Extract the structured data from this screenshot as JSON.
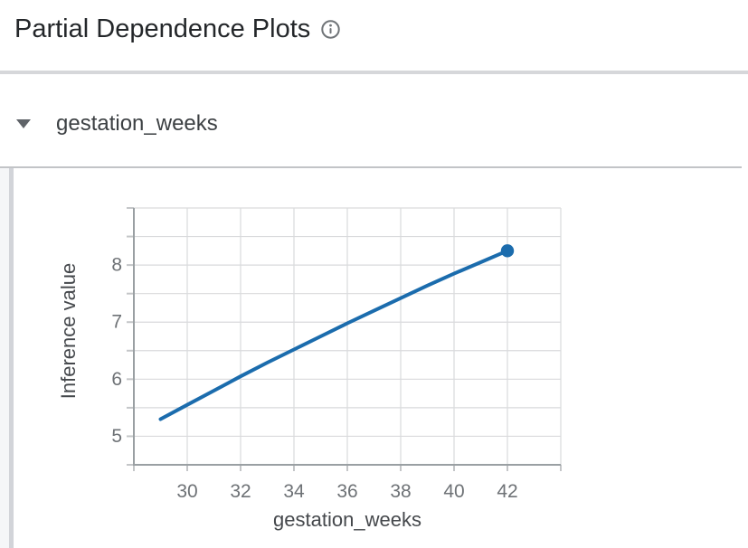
{
  "header": {
    "title": "Partial Dependence Plots"
  },
  "section": {
    "label": "gestation_weeks",
    "state": "expanded"
  },
  "colors": {
    "line_blue": "#1b6cad",
    "grid_line": "#d9dadc",
    "axis_line": "#9aa0a3",
    "tick_mark": "#c4c6c8",
    "tick_label": "#6e7276",
    "axis_title": "#45484c",
    "divider": "#d6d7da",
    "scroll_track": "#f5f6f8",
    "scroll_thumb": "#d2d4d9"
  },
  "chart_data": {
    "type": "line",
    "title": "",
    "xlabel": "gestation_weeks",
    "ylabel": "Inference value",
    "x": [
      29,
      30,
      31,
      32,
      33,
      34,
      35,
      36,
      37,
      38,
      39,
      40,
      41,
      42
    ],
    "values": [
      5.3,
      5.55,
      5.8,
      6.05,
      6.29,
      6.52,
      6.75,
      6.98,
      7.2,
      7.42,
      7.64,
      7.85,
      8.05,
      8.25
    ],
    "xlim": [
      28,
      44
    ],
    "ylim": [
      4.5,
      9.0
    ],
    "x_ticks": [
      30,
      32,
      34,
      36,
      38,
      40,
      42
    ],
    "y_ticks": [
      5,
      6,
      7,
      8
    ],
    "x_grid_step": 2,
    "y_grid_step": 0.5,
    "grid": true,
    "legend": false,
    "end_marker": true
  }
}
